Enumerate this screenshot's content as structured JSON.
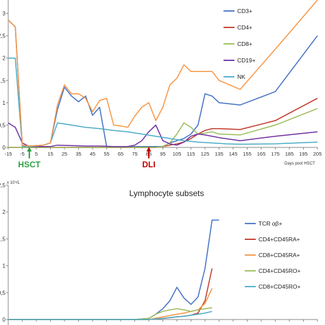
{
  "chart_data": [
    {
      "type": "line",
      "title": "",
      "xlabel": "Days post HSCT",
      "ylabel": "",
      "xlim": [
        -15,
        205
      ],
      "ylim": [
        0,
        3.3
      ],
      "x_ticks": [
        -15,
        -5,
        5,
        15,
        25,
        35,
        45,
        55,
        65,
        75,
        85,
        95,
        105,
        115,
        125,
        135,
        145,
        155,
        165,
        175,
        185,
        195,
        205
      ],
      "y_ticks": [
        0,
        0.5,
        1,
        1.5,
        2,
        2.5,
        3
      ],
      "y_tick_labels": [
        "0",
        "0,5",
        "1",
        "1,5",
        "2",
        "2,5",
        "3"
      ],
      "grid": false,
      "legend_position": "right",
      "series": [
        {
          "name": "CD3+",
          "color": "#4472c4",
          "x": [
            -15,
            -10,
            -5,
            0,
            10,
            15,
            20,
            25,
            30,
            35,
            40,
            45,
            50,
            55,
            60,
            65,
            70,
            75,
            80,
            85,
            90,
            95,
            100,
            105,
            110,
            115,
            120,
            125,
            130,
            135,
            150,
            175,
            205
          ],
          "y": [
            2.85,
            2.7,
            0.05,
            0.03,
            0.05,
            0.1,
            0.85,
            1.35,
            1.15,
            1.02,
            1.15,
            0.72,
            0.9,
            0.02,
            0.02,
            0.02,
            0.02,
            0.02,
            0.02,
            0.02,
            0.02,
            0.02,
            0.1,
            0.15,
            0.2,
            0.3,
            0.5,
            1.2,
            1.15,
            1.0,
            0.95,
            1.25,
            2.5
          ]
        },
        {
          "name": "CD4+",
          "color": "#c0392b",
          "x": [
            -15,
            -10,
            -5,
            0,
            10,
            20,
            30,
            40,
            50,
            60,
            70,
            80,
            85,
            90,
            95,
            100,
            105,
            110,
            115,
            120,
            125,
            130,
            135,
            150,
            175,
            205
          ],
          "y": [
            0,
            0,
            0,
            0,
            0,
            0,
            0,
            0,
            0,
            0,
            0,
            0,
            0,
            0,
            0.02,
            0.05,
            0.08,
            0.12,
            0.2,
            0.3,
            0.38,
            0.42,
            0.42,
            0.4,
            0.6,
            1.1
          ]
        },
        {
          "name": "CD8+",
          "color": "#9bbb59",
          "x": [
            -15,
            -10,
            -5,
            0,
            10,
            20,
            30,
            40,
            50,
            60,
            70,
            80,
            90,
            95,
            100,
            105,
            110,
            115,
            120,
            125,
            130,
            135,
            150,
            175,
            205
          ],
          "y": [
            0,
            0,
            0,
            0,
            0,
            0,
            0,
            0,
            0,
            0,
            0,
            0,
            0,
            0.02,
            0.1,
            0.3,
            0.55,
            0.45,
            0.3,
            0.32,
            0.35,
            0.3,
            0.28,
            0.5,
            0.87
          ]
        },
        {
          "name": "CD19+",
          "color": "#7030a0",
          "x": [
            -15,
            -10,
            -5,
            0,
            10,
            15,
            20,
            30,
            40,
            50,
            60,
            70,
            75,
            80,
            85,
            90,
            95,
            100,
            105,
            110,
            115,
            120,
            125,
            130,
            135,
            150,
            175,
            205
          ],
          "y": [
            0.55,
            0.45,
            0.1,
            0.02,
            0.02,
            0.02,
            0.05,
            0.04,
            0.03,
            0.03,
            0.02,
            0.02,
            0.05,
            0.15,
            0.35,
            0.5,
            0.15,
            0.08,
            0.05,
            0.12,
            0.25,
            0.3,
            0.28,
            0.25,
            0.22,
            0.15,
            0.25,
            0.35
          ]
        },
        {
          "name": "NK",
          "color": "#4bacc6",
          "x": [
            -15,
            -10,
            -5,
            0,
            10,
            15,
            20,
            30,
            40,
            50,
            60,
            70,
            80,
            90,
            100,
            110,
            120,
            130,
            140,
            150,
            175,
            205
          ],
          "y": [
            2.0,
            2.0,
            0.02,
            0.02,
            0.05,
            0.1,
            0.55,
            0.5,
            0.45,
            0.42,
            0.38,
            0.35,
            0.3,
            0.25,
            0.2,
            0.15,
            0.12,
            0.1,
            0.08,
            0.07,
            0.08,
            0.12
          ]
        },
        {
          "name": "",
          "color": "#f79646",
          "x": [
            -15,
            -10,
            -5,
            0,
            10,
            15,
            20,
            25,
            30,
            35,
            40,
            45,
            50,
            55,
            60,
            65,
            70,
            75,
            80,
            85,
            90,
            95,
            100,
            105,
            110,
            115,
            120,
            125,
            130,
            135,
            150,
            175,
            205
          ],
          "y": [
            2.85,
            2.7,
            0.05,
            0.03,
            0.05,
            0.1,
            0.95,
            1.4,
            1.2,
            1.2,
            1.1,
            0.8,
            1.05,
            1.1,
            0.5,
            0.48,
            0.45,
            0.7,
            0.9,
            1.0,
            0.6,
            0.9,
            1.4,
            1.55,
            1.85,
            1.7,
            1.7,
            1.7,
            1.7,
            1.5,
            1.3,
            2.2,
            3.3
          ]
        }
      ],
      "markers": [
        {
          "label": "HSCT",
          "x": 0,
          "color": "#2e9e44"
        },
        {
          "label": "DLI",
          "x": 85,
          "color": "#c00000"
        }
      ]
    },
    {
      "type": "line",
      "title": "Lymphocyte subsets",
      "unit_label": "x 10⁹/L",
      "xlabel": "",
      "ylabel": "",
      "xlim": [
        -15,
        205
      ],
      "ylim": [
        0,
        2.5
      ],
      "y_ticks": [
        0,
        0.5,
        1,
        1.5,
        2,
        2.5
      ],
      "y_tick_labels": [
        "0",
        "0,5",
        "1",
        "1,5",
        "2",
        "2,5"
      ],
      "grid": false,
      "legend_position": "right",
      "series": [
        {
          "name": "TCR αβ+",
          "color": "#4472c4",
          "x": [
            -15,
            0,
            15,
            30,
            45,
            60,
            75,
            85,
            90,
            95,
            100,
            105,
            110,
            115,
            120,
            125,
            130,
            135
          ],
          "y": [
            0,
            0,
            0,
            0,
            0,
            0,
            0,
            0.02,
            0.1,
            0.2,
            0.35,
            0.6,
            0.4,
            0.28,
            0.42,
            0.95,
            1.85,
            1.85
          ]
        },
        {
          "name": "CD4+CD45RA+",
          "color": "#c0392b",
          "x": [
            -15,
            0,
            15,
            30,
            45,
            60,
            75,
            85,
            95,
            105,
            110,
            115,
            120,
            125,
            130
          ],
          "y": [
            0,
            0,
            0,
            0,
            0,
            0,
            0,
            0,
            0.02,
            0.05,
            0.06,
            0.08,
            0.12,
            0.35,
            0.95
          ]
        },
        {
          "name": "CD8+CD45RA+",
          "color": "#f79646",
          "x": [
            -15,
            0,
            15,
            30,
            45,
            60,
            75,
            85,
            95,
            105,
            110,
            115,
            120,
            125,
            130
          ],
          "y": [
            0,
            0,
            0,
            0,
            0,
            0,
            0,
            0,
            0.05,
            0.1,
            0.12,
            0.15,
            0.18,
            0.3,
            0.58
          ]
        },
        {
          "name": "CD4+CD45RO+",
          "color": "#9bbb59",
          "x": [
            -15,
            0,
            15,
            30,
            45,
            60,
            75,
            85,
            90,
            95,
            100,
            105,
            110,
            115,
            120,
            125,
            130
          ],
          "y": [
            0,
            0,
            0,
            0,
            0,
            0,
            0,
            0.02,
            0.1,
            0.15,
            0.18,
            0.2,
            0.18,
            0.15,
            0.18,
            0.2,
            0.22
          ]
        },
        {
          "name": "CD8+CD45RO+",
          "color": "#4bacc6",
          "x": [
            -15,
            0,
            15,
            30,
            45,
            60,
            75,
            85,
            95,
            105,
            110,
            115,
            120,
            125,
            130
          ],
          "y": [
            0,
            0,
            0,
            0,
            0,
            0,
            0,
            0,
            0.02,
            0.05,
            0.06,
            0.08,
            0.1,
            0.12,
            0.15
          ]
        }
      ]
    }
  ]
}
